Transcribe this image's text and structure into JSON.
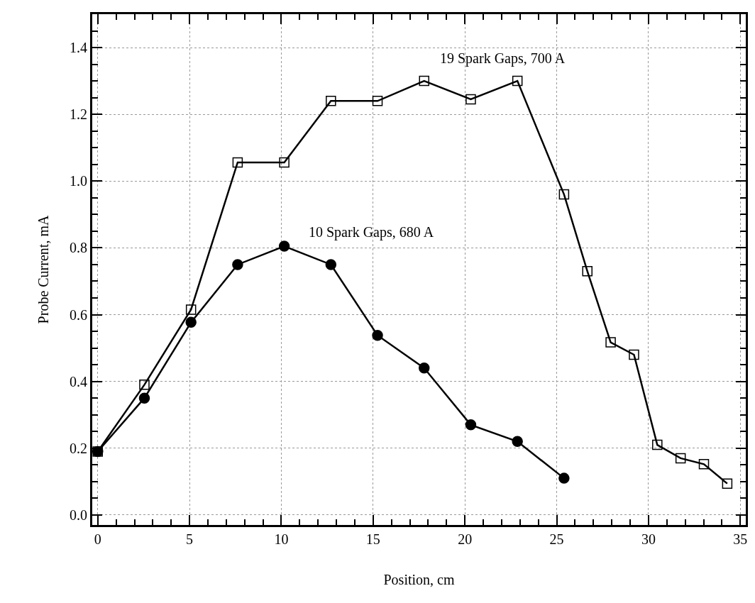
{
  "chart_data": {
    "type": "line",
    "xlabel": "Position, cm",
    "ylabel": "Probe Current, mA",
    "xlim": [
      -0.3,
      35.3
    ],
    "xticks": [
      0,
      5,
      10,
      15,
      20,
      25,
      30,
      35
    ],
    "ylim": [
      -0.03,
      1.5
    ],
    "yticks": [
      {
        "value": 0,
        "label": "0.0"
      },
      0.2,
      0.4,
      0.6,
      0.8,
      {
        "value": 1,
        "label": "1.0"
      },
      1.2,
      1.4
    ],
    "grid": true,
    "legend": false,
    "line_style": "solid",
    "series": [
      {
        "name": "19 Spark Gaps, 700 A",
        "color": "#000000",
        "marker": "square",
        "x": [
          0,
          2.54,
          5.08,
          7.62,
          10.16,
          12.7,
          15.24,
          17.78,
          20.32,
          22.86,
          25.4,
          26.67,
          27.94,
          29.21,
          30.48,
          31.75,
          33.02,
          34.29
        ],
        "values": [
          0.19,
          0.39,
          0.615,
          1.056,
          1.056,
          1.24,
          1.24,
          1.3,
          1.245,
          1.3,
          0.96,
          0.73,
          0.517,
          0.48,
          0.21,
          0.17,
          0.152,
          0.094
        ]
      },
      {
        "name": "10 Spark Gaps, 680 A",
        "color": "#000000",
        "marker": "circle",
        "x": [
          0,
          2.54,
          5.08,
          7.62,
          10.16,
          12.7,
          15.24,
          17.78,
          20.32,
          22.86,
          25.4
        ],
        "values": [
          0.19,
          0.35,
          0.577,
          0.75,
          0.805,
          0.75,
          0.538,
          0.44,
          0.27,
          0.22,
          0.11
        ]
      }
    ]
  }
}
